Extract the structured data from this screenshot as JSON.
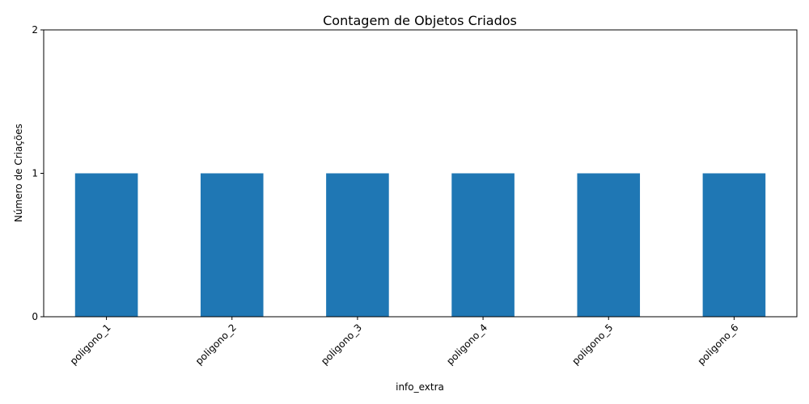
{
  "chart_data": {
    "type": "bar",
    "title": "Contagem de Objetos Criados",
    "xlabel": "info_extra",
    "ylabel": "Número de Criações",
    "categories": [
      "poligono_1",
      "poligono_2",
      "poligono_3",
      "poligono_4",
      "poligono_5",
      "poligono_6"
    ],
    "values": [
      1,
      1,
      1,
      1,
      1,
      1
    ],
    "ylim": [
      0,
      2
    ],
    "yticks": [
      0,
      1,
      2
    ],
    "x_tick_rotation_deg": 45,
    "grid": false,
    "legend": "none",
    "bar_color": "#1f77b4"
  }
}
